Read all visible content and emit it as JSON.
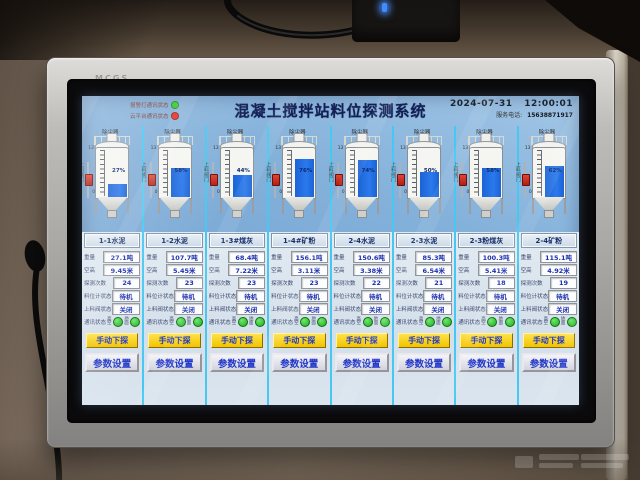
{
  "device": {
    "brand": "MCGS"
  },
  "screen": {
    "header": {
      "status": [
        {
          "label": "报警灯通讯状态",
          "color": "#2ecc2e"
        },
        {
          "label": "云平台通讯状态",
          "color": "#e42314"
        }
      ],
      "title": "混凝土搅拌站料位探测系统",
      "date": "2024-07-31",
      "time": "12:00:01",
      "service_label": "服务电话:",
      "service_phone": "15638871917"
    },
    "labels": {
      "dust_collector": "除尘器",
      "weight": "重量",
      "empty_height": "空高",
      "detect_count": "探测次数",
      "level_meter_status": "料位计状态",
      "feed_valve_status": "上料阀状态",
      "comm_status": "通讯状态",
      "comm_a": "高空",
      "comm_b": "地面",
      "valve_side": "上料阀门",
      "scale_top": "13",
      "scale_bottom": "0",
      "btn_probe": "手动下探",
      "btn_params": "参数设置"
    },
    "columns": [
      {
        "name": "1-1水泥",
        "weight": "27.1吨",
        "empty": "9.45米",
        "count": "24",
        "meter": "待机",
        "valve": "关闭",
        "percent": "27%",
        "fill": 27
      },
      {
        "name": "1-2水泥",
        "weight": "107.7吨",
        "empty": "5.45米",
        "count": "23",
        "meter": "待机",
        "valve": "关闭",
        "percent": "58%",
        "fill": 58
      },
      {
        "name": "1-3#煤灰",
        "weight": "68.4吨",
        "empty": "7.22米",
        "count": "23",
        "meter": "待机",
        "valve": "关闭",
        "percent": "44%",
        "fill": 44
      },
      {
        "name": "1-4#矿粉",
        "weight": "156.1吨",
        "empty": "3.11米",
        "count": "23",
        "meter": "待机",
        "valve": "关闭",
        "percent": "76%",
        "fill": 76
      },
      {
        "name": "2-4水泥",
        "weight": "150.6吨",
        "empty": "3.38米",
        "count": "22",
        "meter": "待机",
        "valve": "关闭",
        "percent": "74%",
        "fill": 74
      },
      {
        "name": "2-3水泥",
        "weight": "85.3吨",
        "empty": "6.54米",
        "count": "21",
        "meter": "待机",
        "valve": "关闭",
        "percent": "50%",
        "fill": 50
      },
      {
        "name": "2-3粉煤灰",
        "weight": "100.3吨",
        "empty": "5.41米",
        "count": "18",
        "meter": "待机",
        "valve": "关闭",
        "percent": "58%",
        "fill": 58
      },
      {
        "name": "2-4矿粉",
        "weight": "115.1吨",
        "empty": "4.92米",
        "count": "19",
        "meter": "待机",
        "valve": "关闭",
        "percent": "62%",
        "fill": 62
      }
    ]
  }
}
